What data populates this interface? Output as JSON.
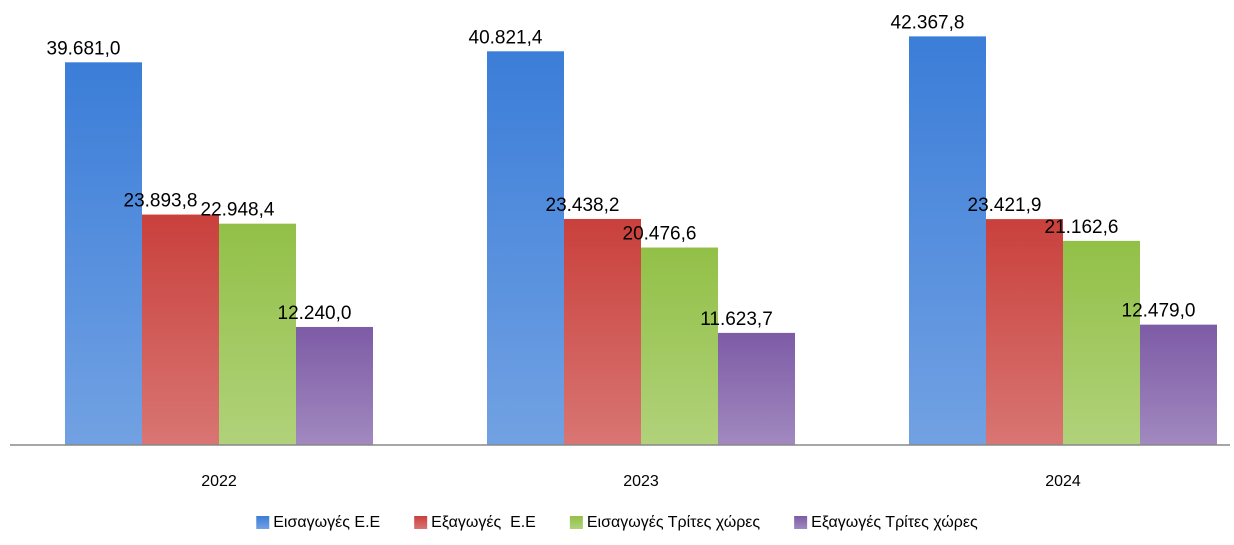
{
  "chart_data": {
    "type": "bar",
    "categories": [
      "2022",
      "2023",
      "2024"
    ],
    "ylim": [
      0,
      45000
    ],
    "legend": "bottom",
    "series": [
      {
        "name": "Εισαγωγές Ε.Ε",
        "color": "#3b7dd8",
        "values": [
          39681.0,
          40821.4,
          42367.8
        ],
        "value_labels": [
          "39.681,0",
          "40.821,4",
          "42.367,8"
        ]
      },
      {
        "name": "Εξαγωγές  Ε.Ε",
        "color": "#c9403c",
        "values": [
          23893.8,
          23438.2,
          23421.9
        ],
        "value_labels": [
          "23.893,8",
          "23.438,2",
          "23.421,9"
        ]
      },
      {
        "name": "Εισαγωγές Τρίτες χώρες",
        "color": "#92c047",
        "values": [
          22948.4,
          20476.6,
          21162.6
        ],
        "value_labels": [
          "22.948,4",
          "20.476,6",
          "21.162,6"
        ]
      },
      {
        "name": "Εξαγωγές Τρίτες χώρες",
        "color": "#7d5ba6",
        "values": [
          12240.0,
          11623.7,
          12479.0
        ],
        "value_labels": [
          "12.240,0",
          "11.623,7",
          "12.479,0"
        ]
      }
    ]
  }
}
